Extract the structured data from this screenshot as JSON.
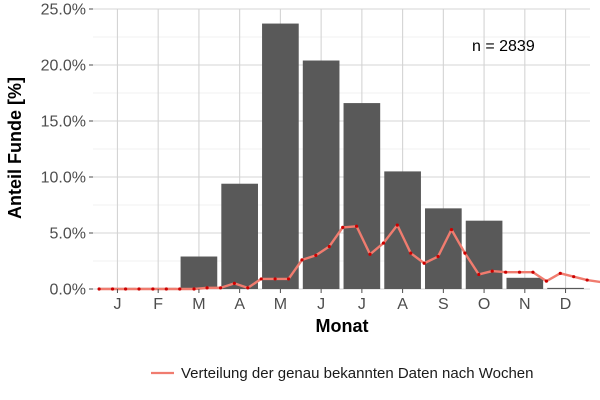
{
  "chart_data": {
    "type": "bar",
    "categories": [
      "J",
      "F",
      "M",
      "A",
      "M",
      "J",
      "J",
      "A",
      "S",
      "O",
      "N",
      "D"
    ],
    "values": [
      0.1,
      0.1,
      2.9,
      9.4,
      23.7,
      20.4,
      16.6,
      10.5,
      7.2,
      6.1,
      1.0,
      0.1
    ],
    "ylim": [
      0,
      25
    ],
    "yticks": [
      0,
      5,
      10,
      15,
      20,
      25
    ],
    "ytick_labels": [
      "0.0%",
      "5.0%",
      "10.0%",
      "15.0%",
      "20.0%",
      "25.0%"
    ],
    "xlabel": "Monat",
    "ylabel": "Anteil Funde [%]",
    "annotation": "n = 2839",
    "grid": true,
    "legend_position": "bottom-right",
    "bar_color": "#595959",
    "series": [
      {
        "name": "Verteilung der genau bekannten Daten nach Wochen",
        "type": "line",
        "color": "#f07c6f",
        "point_color": "#cc0000",
        "x": [
          0.55,
          0.88,
          1.2,
          1.53,
          1.87,
          2.2,
          2.53,
          2.88,
          3.2,
          3.53,
          3.87,
          4.2,
          4.53,
          4.87,
          5.2,
          5.53,
          5.87,
          6.2,
          6.53,
          6.87,
          7.2,
          7.53,
          7.87,
          8.2,
          8.53,
          8.87,
          9.2,
          9.53,
          9.87,
          10.2,
          10.53,
          10.87,
          11.2,
          11.53,
          11.87,
          12.2,
          12.53,
          12.9,
          13.2,
          13.53,
          13.87,
          14.2,
          14.53,
          14.87
        ],
        "y": [
          0,
          0,
          0,
          0,
          0,
          0,
          0,
          0,
          0.1,
          0.1,
          0.5,
          0.1,
          0.9,
          0.9,
          0.9,
          2.6,
          3.0,
          3.8,
          5.5,
          5.6,
          3.1,
          4.1,
          5.7,
          3.2,
          2.3,
          2.9,
          5.3,
          3.2,
          1.3,
          1.6,
          1.5,
          1.5,
          1.5,
          0.7,
          1.4,
          1.1,
          0.8,
          0.6,
          1.2,
          0.8,
          1.4,
          0.1,
          0.1,
          0
        ]
      }
    ]
  }
}
